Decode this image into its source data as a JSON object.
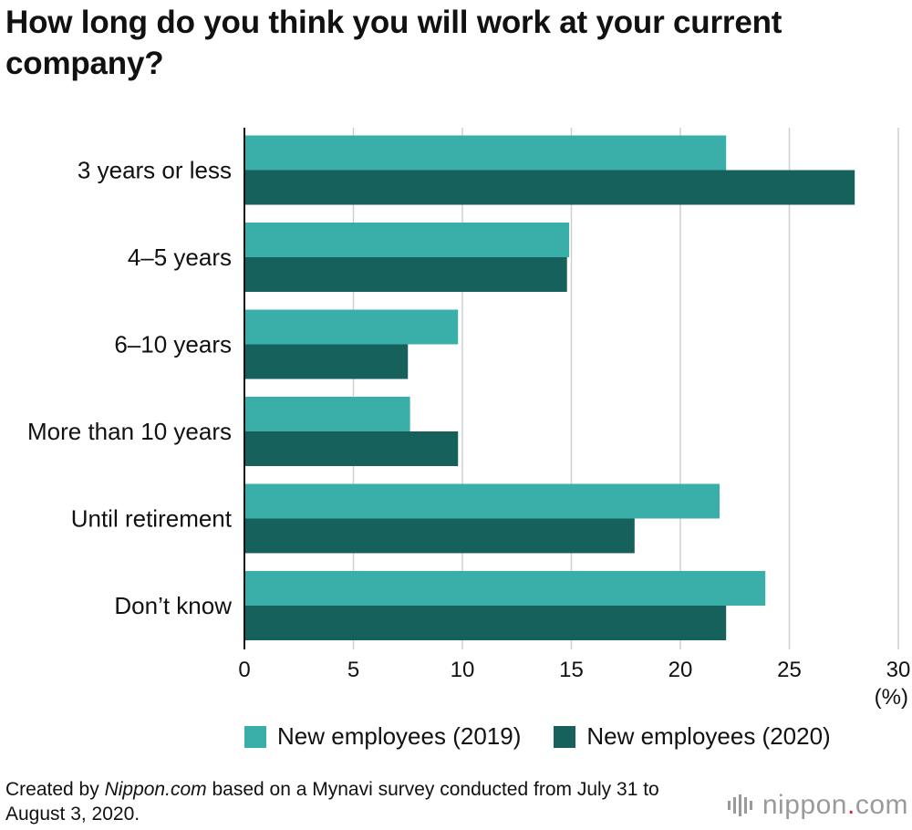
{
  "title": "How long do you think you will work at your current company?",
  "chart_data": {
    "type": "bar",
    "orientation": "horizontal",
    "title": "How long do you think you will work at your current company?",
    "categories": [
      "3 years or less",
      "4–5 years",
      "6–10 years",
      "More than 10 years",
      "Until retirement",
      "Don’t know"
    ],
    "series": [
      {
        "name": "New employees (2019)",
        "color": "#3aafa9",
        "values": [
          22.1,
          14.9,
          9.8,
          7.6,
          21.8,
          23.9
        ]
      },
      {
        "name": "New employees (2020)",
        "color": "#17615d",
        "values": [
          28.0,
          14.8,
          7.5,
          9.8,
          17.9,
          22.1
        ]
      }
    ],
    "xlim": [
      0,
      30
    ],
    "xticks": [
      0,
      5,
      10,
      15,
      20,
      25,
      30
    ],
    "xunit": "(%)",
    "grid": true,
    "legend_position": "bottom"
  },
  "legend": {
    "series_2019": "New employees (2019)",
    "series_2020": "New employees (2020)",
    "color_2019": "#3aafa9",
    "color_2020": "#17615d"
  },
  "source": {
    "prefix": "Created by ",
    "site": "Nippon.com",
    "suffix": " based on a Mynavi survey conducted from July 31 to August 3, 2020."
  },
  "brand": {
    "name": "nippon",
    "dot": ".",
    "tld": "com"
  }
}
